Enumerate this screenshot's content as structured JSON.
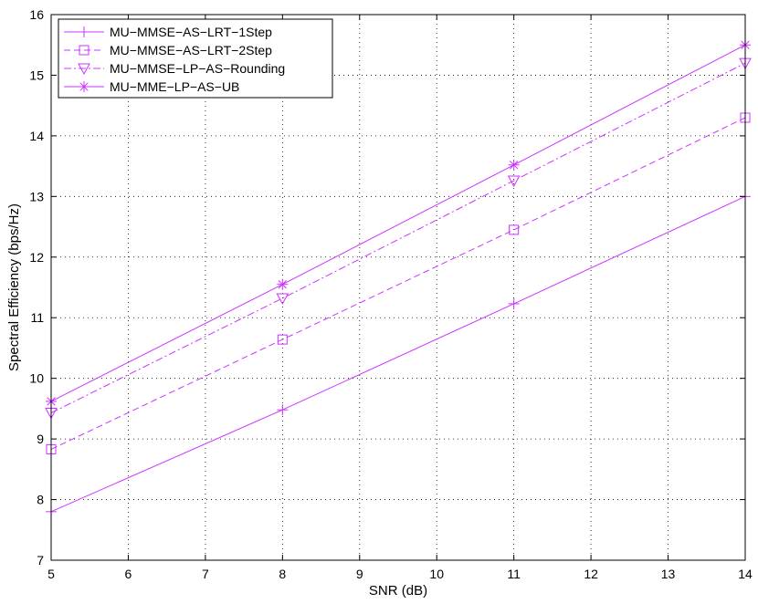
{
  "chart_data": {
    "type": "line",
    "title": "",
    "xlabel": "SNR (dB)",
    "ylabel": "Spectral Efficiency (bps/Hz)",
    "xlim": [
      5,
      14
    ],
    "ylim": [
      7,
      16
    ],
    "xticks": [
      "5",
      "6",
      "7",
      "8",
      "9",
      "10",
      "11",
      "12",
      "13",
      "14"
    ],
    "yticks": [
      "7",
      "8",
      "9",
      "10",
      "11",
      "12",
      "13",
      "14",
      "15",
      "16"
    ],
    "grid": true,
    "legend_position": "top-left",
    "line_color": "#cc33ff",
    "x": [
      5,
      8,
      11,
      14
    ],
    "series": [
      {
        "name": "MU−MMSE−AS−LRT−1Step",
        "values": [
          7.8,
          9.48,
          11.23,
          13.0
        ],
        "marker": "plus",
        "dash": "solid"
      },
      {
        "name": "MU−MMSE−AS−LRT−2Step",
        "values": [
          8.83,
          10.64,
          12.45,
          14.3
        ],
        "marker": "square",
        "dash": "dashed"
      },
      {
        "name": "MU−MMSE−LP−AS−Rounding",
        "values": [
          9.43,
          11.32,
          13.26,
          15.2
        ],
        "marker": "triangle-down",
        "dash": "dashdot"
      },
      {
        "name": "MU−MME−LP−AS−UB",
        "values": [
          9.62,
          11.55,
          13.52,
          15.5
        ],
        "marker": "asterisk",
        "dash": "solid"
      }
    ]
  }
}
